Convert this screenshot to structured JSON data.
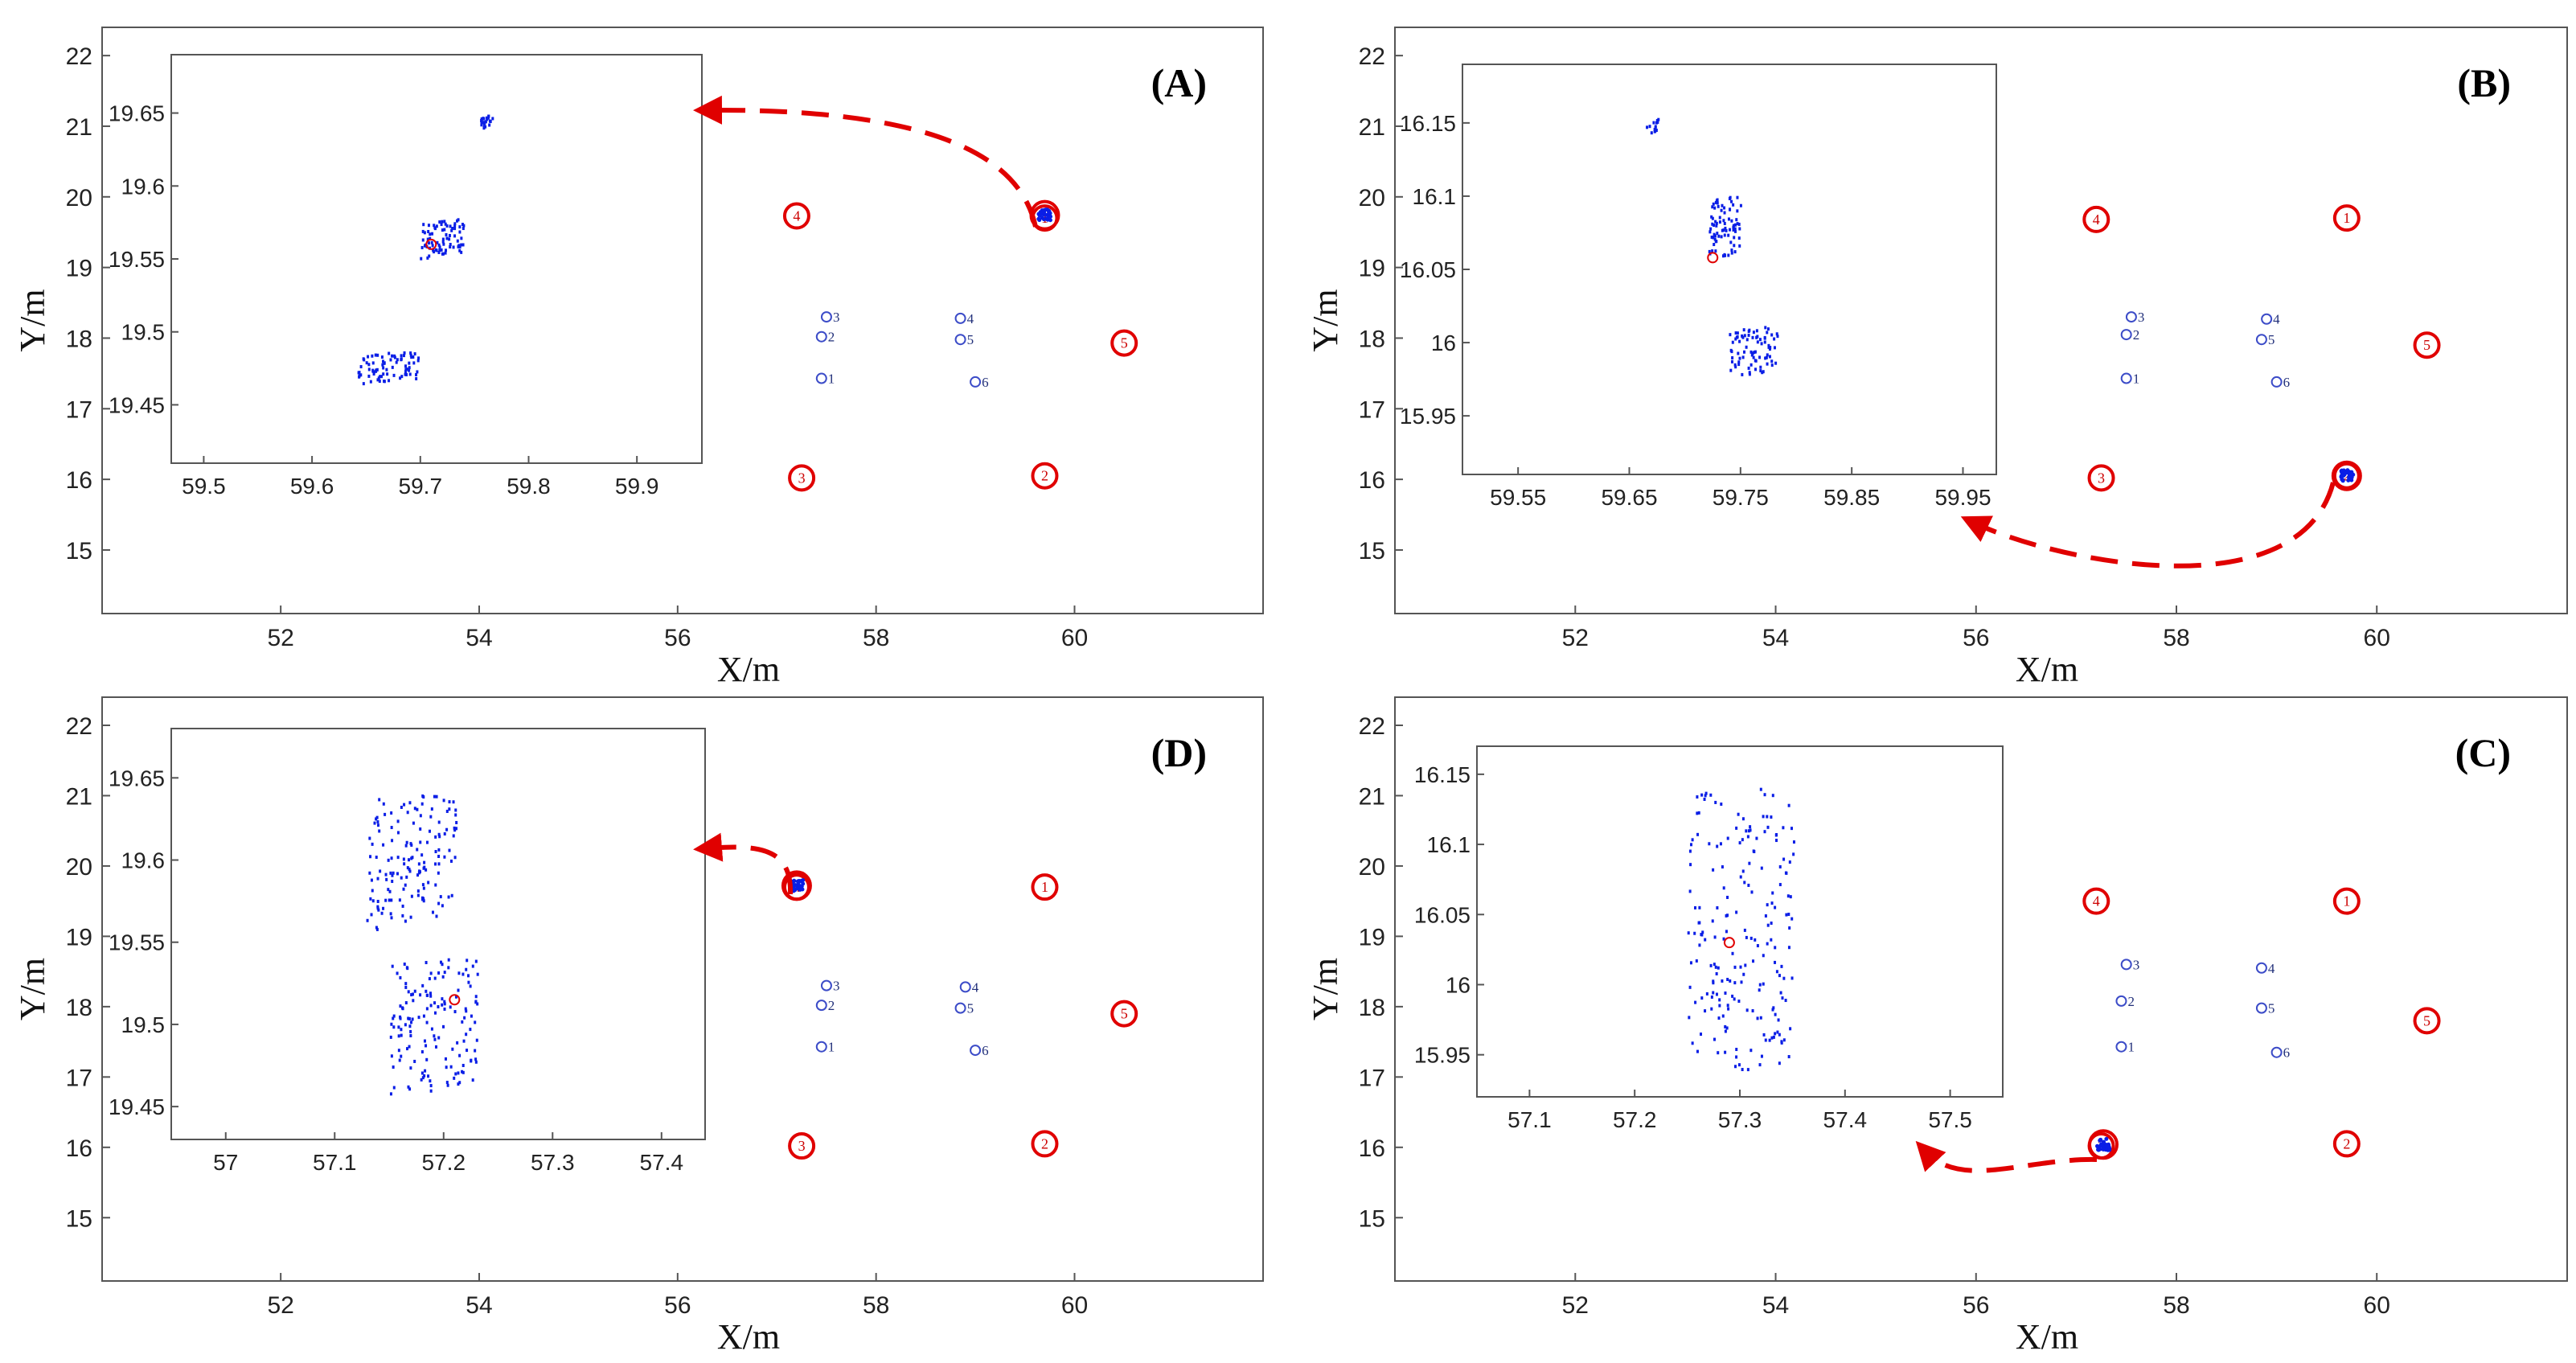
{
  "colors": {
    "accent": "#e00000",
    "samples": "#0a1ee6",
    "receivers": "#3c4cc8",
    "axis": "#555555"
  },
  "chart_data": [
    {
      "type": "scatter",
      "title": "(A)",
      "xlabel": "X/m",
      "ylabel": "Y/m",
      "xlim": [
        50.2,
        61.9
      ],
      "ylim": [
        14.1,
        22.4
      ],
      "xticks": [
        52,
        54,
        56,
        58,
        60
      ],
      "yticks": [
        15,
        16,
        17,
        18,
        19,
        20,
        21,
        22
      ],
      "anchors": [
        {
          "label": "1",
          "x": 59.7,
          "y": 19.7
        },
        {
          "label": "2",
          "x": 59.7,
          "y": 16.05
        },
        {
          "label": "3",
          "x": 57.25,
          "y": 16.02
        },
        {
          "label": "4",
          "x": 57.2,
          "y": 19.73
        },
        {
          "label": "5",
          "x": 60.5,
          "y": 17.93
        }
      ],
      "receivers": [
        {
          "label": "1",
          "x": 57.45,
          "y": 17.43
        },
        {
          "label": "2",
          "x": 57.45,
          "y": 18.02
        },
        {
          "label": "3",
          "x": 57.5,
          "y": 18.3
        },
        {
          "label": "4",
          "x": 58.85,
          "y": 18.28
        },
        {
          "label": "5",
          "x": 58.85,
          "y": 17.98
        },
        {
          "label": "6",
          "x": 59.0,
          "y": 17.38
        }
      ],
      "highlight": {
        "x": 59.7,
        "y": 19.74
      },
      "inset": {
        "xlim": [
          59.47,
          59.96
        ],
        "ylim": [
          19.41,
          19.69
        ],
        "xticks": [
          "59.5",
          "59.6",
          "59.7",
          "59.8",
          "59.9"
        ],
        "yticks": [
          "19.45",
          "19.5",
          "19.55",
          "19.6",
          "19.65"
        ],
        "clusters": [
          {
            "x": 59.76,
            "y": 19.645,
            "dx": 0.006,
            "dy": 0.004,
            "n": 22,
            "angle": 80
          },
          {
            "x": 59.72,
            "y": 19.565,
            "dx": 0.02,
            "dy": 0.012,
            "n": 80,
            "angle": 70
          },
          {
            "x": 59.67,
            "y": 19.477,
            "dx": 0.028,
            "dy": 0.01,
            "n": 80,
            "angle": 70
          }
        ],
        "truth": {
          "x": 59.71,
          "y": 19.56
        }
      }
    },
    {
      "type": "scatter",
      "title": "(B)",
      "xlabel": "X/m",
      "ylabel": "Y/m",
      "xlim": [
        50.2,
        61.9
      ],
      "ylim": [
        14.1,
        22.4
      ],
      "xticks": [
        52,
        54,
        56,
        58,
        60
      ],
      "yticks": [
        15,
        16,
        17,
        18,
        19,
        20,
        21,
        22
      ],
      "anchors": [
        {
          "label": "1",
          "x": 59.7,
          "y": 19.7
        },
        {
          "label": "2",
          "x": 59.7,
          "y": 16.05
        },
        {
          "label": "3",
          "x": 57.25,
          "y": 16.02
        },
        {
          "label": "4",
          "x": 57.2,
          "y": 19.68
        },
        {
          "label": "5",
          "x": 60.5,
          "y": 17.9
        }
      ],
      "receivers": [
        {
          "label": "1",
          "x": 57.5,
          "y": 17.43
        },
        {
          "label": "2",
          "x": 57.5,
          "y": 18.05
        },
        {
          "label": "3",
          "x": 57.55,
          "y": 18.3
        },
        {
          "label": "4",
          "x": 58.9,
          "y": 18.27
        },
        {
          "label": "5",
          "x": 58.85,
          "y": 17.98
        },
        {
          "label": "6",
          "x": 59.0,
          "y": 17.38
        }
      ],
      "highlight": {
        "x": 59.7,
        "y": 16.05
      },
      "inset": {
        "xlim": [
          59.5,
          59.98
        ],
        "ylim": [
          15.91,
          16.19
        ],
        "xticks": [
          "59.55",
          "59.65",
          "59.75",
          "59.85",
          "59.95"
        ],
        "yticks": [
          "15.95",
          "16",
          "16.05",
          "16.1",
          "16.15"
        ],
        "clusters": [
          {
            "x": 59.67,
            "y": 16.148,
            "dx": 0.006,
            "dy": 0.004,
            "n": 14,
            "angle": 80
          },
          {
            "x": 59.735,
            "y": 16.08,
            "dx": 0.014,
            "dy": 0.02,
            "n": 80,
            "angle": 75
          },
          {
            "x": 59.76,
            "y": 15.995,
            "dx": 0.022,
            "dy": 0.016,
            "n": 80,
            "angle": 75
          }
        ],
        "truth": {
          "x": 59.725,
          "y": 16.058
        }
      }
    },
    {
      "type": "scatter",
      "title": "(D)",
      "xlabel": "X/m",
      "ylabel": "Y/m",
      "xlim": [
        50.2,
        61.9
      ],
      "ylim": [
        14.1,
        22.4
      ],
      "xticks": [
        52,
        54,
        56,
        58,
        60
      ],
      "yticks": [
        15,
        16,
        17,
        18,
        19,
        20,
        21,
        22
      ],
      "anchors": [
        {
          "label": "1",
          "x": 59.7,
          "y": 19.7
        },
        {
          "label": "2",
          "x": 59.7,
          "y": 16.05
        },
        {
          "label": "3",
          "x": 57.25,
          "y": 16.02
        },
        {
          "label": "4",
          "x": 57.2,
          "y": 19.7
        },
        {
          "label": "5",
          "x": 60.5,
          "y": 17.9
        }
      ],
      "receivers": [
        {
          "label": "1",
          "x": 57.45,
          "y": 17.43
        },
        {
          "label": "2",
          "x": 57.45,
          "y": 18.02
        },
        {
          "label": "3",
          "x": 57.5,
          "y": 18.3
        },
        {
          "label": "4",
          "x": 58.9,
          "y": 18.28
        },
        {
          "label": "5",
          "x": 58.85,
          "y": 17.98
        },
        {
          "label": "6",
          "x": 59.0,
          "y": 17.38
        }
      ],
      "highlight": {
        "x": 57.2,
        "y": 19.72
      },
      "inset": {
        "xlim": [
          56.95,
          57.44
        ],
        "ylim": [
          19.43,
          19.68
        ],
        "xticks": [
          "57",
          "57.1",
          "57.2",
          "57.3",
          "57.4"
        ],
        "yticks": [
          "19.45",
          "19.5",
          "19.55",
          "19.6",
          "19.65"
        ],
        "clusters": [
          {
            "x": 57.17,
            "y": 19.6,
            "dx": 0.04,
            "dy": 0.04,
            "n": 150,
            "angle": 70
          },
          {
            "x": 57.19,
            "y": 19.5,
            "dx": 0.04,
            "dy": 0.04,
            "n": 150,
            "angle": 70
          }
        ],
        "truth": {
          "x": 57.21,
          "y": 19.515
        }
      }
    },
    {
      "type": "scatter",
      "title": "(C)",
      "xlabel": "X/m",
      "ylabel": "Y/m",
      "xlim": [
        50.2,
        61.9
      ],
      "ylim": [
        14.1,
        22.4
      ],
      "xticks": [
        52,
        54,
        56,
        58,
        60
      ],
      "yticks": [
        15,
        16,
        17,
        18,
        19,
        20,
        21,
        22
      ],
      "anchors": [
        {
          "label": "1",
          "x": 59.7,
          "y": 19.5
        },
        {
          "label": "2",
          "x": 59.7,
          "y": 16.05
        },
        {
          "label": "3",
          "x": 57.25,
          "y": 16.02
        },
        {
          "label": "4",
          "x": 57.2,
          "y": 19.5
        },
        {
          "label": "5",
          "x": 60.5,
          "y": 17.8
        }
      ],
      "receivers": [
        {
          "label": "1",
          "x": 57.45,
          "y": 17.43
        },
        {
          "label": "2",
          "x": 57.45,
          "y": 18.08
        },
        {
          "label": "3",
          "x": 57.5,
          "y": 18.6
        },
        {
          "label": "4",
          "x": 58.85,
          "y": 18.55
        },
        {
          "label": "5",
          "x": 58.85,
          "y": 17.98
        },
        {
          "label": "6",
          "x": 59.0,
          "y": 17.35
        }
      ],
      "highlight": {
        "x": 57.27,
        "y": 16.04
      },
      "inset": {
        "xlim": [
          57.05,
          57.55
        ],
        "ylim": [
          15.92,
          16.17
        ],
        "xticks": [
          "57.1",
          "57.2",
          "57.3",
          "57.4",
          "57.5"
        ],
        "yticks": [
          "15.95",
          "16",
          "16.05",
          "16.1",
          "16.15"
        ],
        "clusters": [
          {
            "x": 57.3,
            "y": 16.04,
            "dx": 0.05,
            "dy": 0.1,
            "n": 200,
            "angle": 60
          }
        ],
        "truth": {
          "x": 57.29,
          "y": 16.03
        }
      }
    }
  ]
}
